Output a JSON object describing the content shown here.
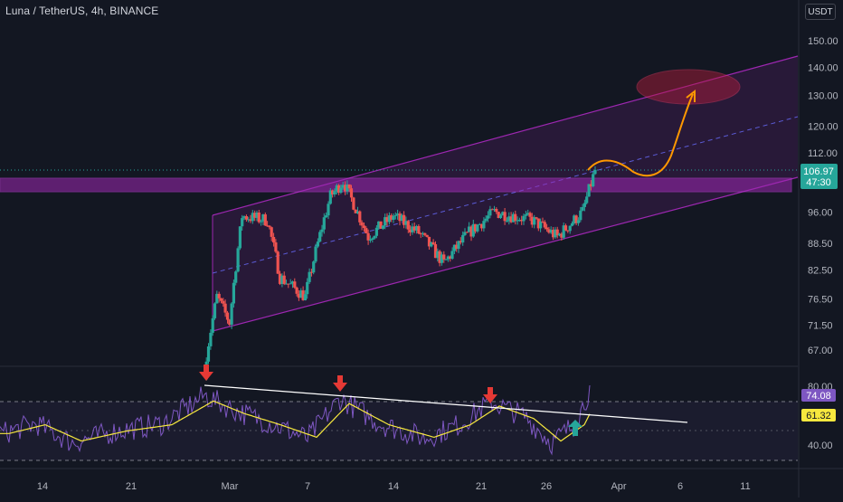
{
  "header": {
    "title": "Luna / TetherUS, 4h, BINANCE",
    "currency": "USDT"
  },
  "colors": {
    "background": "#131722",
    "axis_text": "#b2b5be",
    "up": "#26a69a",
    "down": "#ef5350",
    "channel": "#9c27b0",
    "channel_mid": "#5b5bd6",
    "projection": "#ff9800",
    "rsi": "#7e57c2",
    "rsi_ma": "#f7e83e",
    "trendline": "#ffffff",
    "arrow": "#e53935",
    "last_price": "#26a69a"
  },
  "chart_data": [
    {
      "type": "candlestick",
      "title": "Luna / TetherUS, 4h, BINANCE",
      "y_ticks": [
        "150.00",
        "140.00",
        "130.00",
        "120.00",
        "112.00",
        "96.00",
        "88.50",
        "82.50",
        "76.50",
        "71.50",
        "67.00"
      ],
      "x_ticks": [
        "14",
        "21",
        "Mar",
        "7",
        "14",
        "21",
        "26",
        "Apr",
        "6",
        "11"
      ],
      "scale": "log",
      "price_path": [
        {
          "date": "Feb 27",
          "close": 64
        },
        {
          "date": "Feb 28",
          "close": 77
        },
        {
          "date": "Mar 1",
          "close": 72
        },
        {
          "date": "Mar 2",
          "close": 95
        },
        {
          "date": "Mar 4",
          "close": 94
        },
        {
          "date": "Mar 5",
          "close": 81
        },
        {
          "date": "Mar 7",
          "close": 77
        },
        {
          "date": "Mar 9",
          "close": 100
        },
        {
          "date": "Mar 10",
          "close": 104
        },
        {
          "date": "Mar 12",
          "close": 90
        },
        {
          "date": "Mar 14",
          "close": 95
        },
        {
          "date": "Mar 16",
          "close": 91
        },
        {
          "date": "Mar 18",
          "close": 84
        },
        {
          "date": "Mar 20",
          "close": 91
        },
        {
          "date": "Mar 22",
          "close": 96
        },
        {
          "date": "Mar 25",
          "close": 94
        },
        {
          "date": "Mar 27",
          "close": 90
        },
        {
          "date": "Mar 29",
          "close": 96
        },
        {
          "date": "Mar 30",
          "close": 107
        }
      ],
      "last_price": "106.97",
      "countdown": "47:30",
      "annotations": {
        "resistance_zone": [
          100,
          104
        ],
        "channel": "ascending",
        "projection_target_zone": [
          128,
          136
        ]
      }
    },
    {
      "type": "line",
      "y_ticks": [
        "80.00",
        "40.00"
      ],
      "series": [
        {
          "label": "74.08",
          "color": "#7e57c2"
        },
        {
          "label": "61.32",
          "color": "#f7e83e"
        }
      ],
      "bands": [
        70,
        30
      ],
      "annotations": {
        "bearish_arrows": 3,
        "descending_trendline": true,
        "breakout_arrow": true
      }
    }
  ]
}
